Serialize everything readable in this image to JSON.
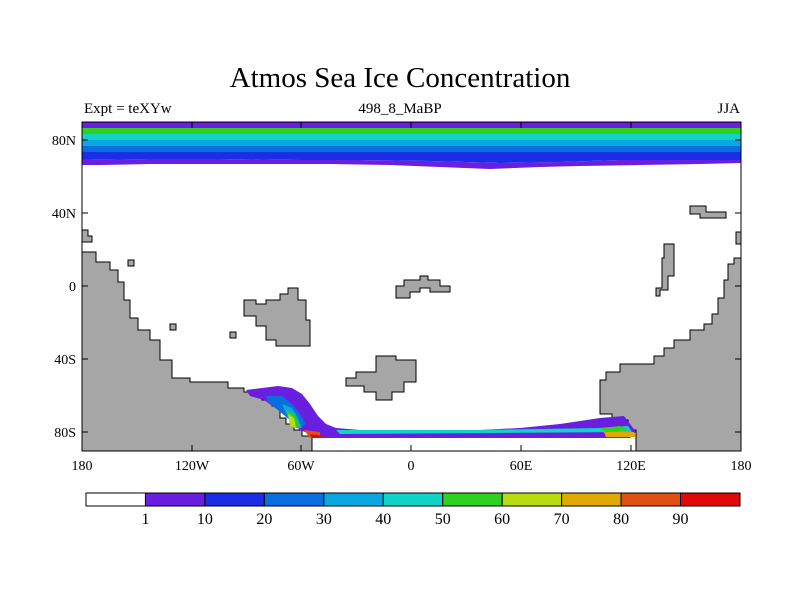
{
  "title": "Atmos Sea Ice Concentration",
  "subtitle_left": "Expt = teXYw",
  "subtitle_center": "498_8_MaBP",
  "subtitle_right": "JJA",
  "map": {
    "lon_range": [
      -180,
      180
    ],
    "lat_range": [
      -90,
      90
    ],
    "x_ticks": [
      "180",
      "120W",
      "60W",
      "0",
      "60E",
      "120E",
      "180"
    ],
    "y_ticks": [
      "80N",
      "40N",
      "0",
      "40S",
      "80S"
    ],
    "land_color": "#a6a6a6",
    "ocean_color": "#ffffff"
  },
  "colorbar": {
    "levels": [
      "1",
      "10",
      "20",
      "30",
      "40",
      "50",
      "60",
      "70",
      "80",
      "90"
    ],
    "colors": [
      "#ffffff",
      "#6a1ee0",
      "#1a2ee8",
      "#0a6ee0",
      "#0aa8e0",
      "#10d4c8",
      "#30d020",
      "#b8dc10",
      "#e0a800",
      "#e05010",
      "#e00808"
    ]
  }
}
